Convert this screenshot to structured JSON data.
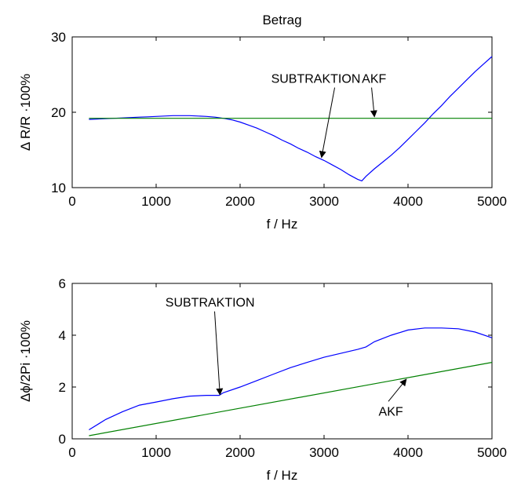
{
  "chart_data": [
    {
      "type": "line",
      "title": "Betrag",
      "xlabel": "f / Hz",
      "ylabel": "Δ R/R ·100%",
      "xlim": [
        0,
        5000
      ],
      "ylim": [
        10,
        30
      ],
      "xticks": [
        0,
        1000,
        2000,
        3000,
        4000,
        5000
      ],
      "yticks": [
        10,
        20,
        30
      ],
      "grid": false,
      "series": [
        {
          "name": "SUBTRAKTION",
          "color": "#0000ff",
          "x": [
            200,
            300,
            400,
            500,
            600,
            700,
            800,
            900,
            1000,
            1100,
            1200,
            1300,
            1400,
            1500,
            1600,
            1700,
            1800,
            1900,
            2000,
            2100,
            2200,
            2300,
            2400,
            2500,
            2600,
            2700,
            2800,
            2900,
            3000,
            3100,
            3200,
            3300,
            3400,
            3450,
            3500,
            3600,
            3700,
            3800,
            3900,
            4000,
            4100,
            4200,
            4300,
            4400,
            4500,
            4600,
            4700,
            4800,
            4900,
            5000
          ],
          "y": [
            19.05,
            19.1,
            19.15,
            19.2,
            19.25,
            19.3,
            19.35,
            19.4,
            19.45,
            19.5,
            19.55,
            19.55,
            19.55,
            19.5,
            19.45,
            19.35,
            19.2,
            19.0,
            18.7,
            18.3,
            17.9,
            17.4,
            16.9,
            16.3,
            15.8,
            15.2,
            14.7,
            14.1,
            13.6,
            13.0,
            12.4,
            11.7,
            11.1,
            10.9,
            11.5,
            12.5,
            13.4,
            14.3,
            15.3,
            16.4,
            17.5,
            18.6,
            19.8,
            20.9,
            22.1,
            23.2,
            24.3,
            25.4,
            26.4,
            27.4
          ]
        },
        {
          "name": "AKF",
          "color": "#008000",
          "x": [
            200,
            5000
          ],
          "y": [
            19.2,
            19.2
          ]
        }
      ],
      "annotations": [
        {
          "text": "SUBTRAKTION",
          "x_text": 2370,
          "y_text": 23.9,
          "x_arrow": 2970,
          "y_arrow": 14.0
        },
        {
          "text": "AKF",
          "x_text": 3450,
          "y_text": 23.9,
          "x_arrow": 3600,
          "y_arrow": 19.4
        }
      ]
    },
    {
      "type": "line",
      "title": "",
      "xlabel": "f / Hz",
      "ylabel": "Δϕ/2Pi ·100%",
      "xlim": [
        0,
        5000
      ],
      "ylim": [
        0,
        6
      ],
      "xticks": [
        0,
        1000,
        2000,
        3000,
        4000,
        5000
      ],
      "yticks": [
        0,
        2,
        4,
        6
      ],
      "grid": false,
      "series": [
        {
          "name": "SUBTRAKTION",
          "color": "#0000ff",
          "x": [
            200,
            400,
            600,
            800,
            1000,
            1200,
            1400,
            1600,
            1750,
            1800,
            2000,
            2200,
            2400,
            2600,
            2800,
            3000,
            3200,
            3400,
            3500,
            3600,
            3800,
            4000,
            4200,
            4400,
            4600,
            4800,
            5000
          ],
          "y": [
            0.35,
            0.75,
            1.05,
            1.3,
            1.42,
            1.55,
            1.65,
            1.68,
            1.68,
            1.78,
            2.0,
            2.25,
            2.5,
            2.75,
            2.95,
            3.15,
            3.3,
            3.45,
            3.55,
            3.75,
            4.0,
            4.2,
            4.28,
            4.28,
            4.25,
            4.12,
            3.9
          ]
        },
        {
          "name": "AKF",
          "color": "#008000",
          "x": [
            200,
            5000
          ],
          "y": [
            0.12,
            2.95
          ]
        }
      ],
      "annotations": [
        {
          "text": "SUBTRAKTION",
          "x_text": 1110,
          "y_text": 5.1,
          "x_arrow": 1760,
          "y_arrow": 1.7
        },
        {
          "text": "AKF",
          "x_text": 3650,
          "y_text": 0.9,
          "x_arrow": 3980,
          "y_arrow": 2.3
        }
      ]
    }
  ]
}
